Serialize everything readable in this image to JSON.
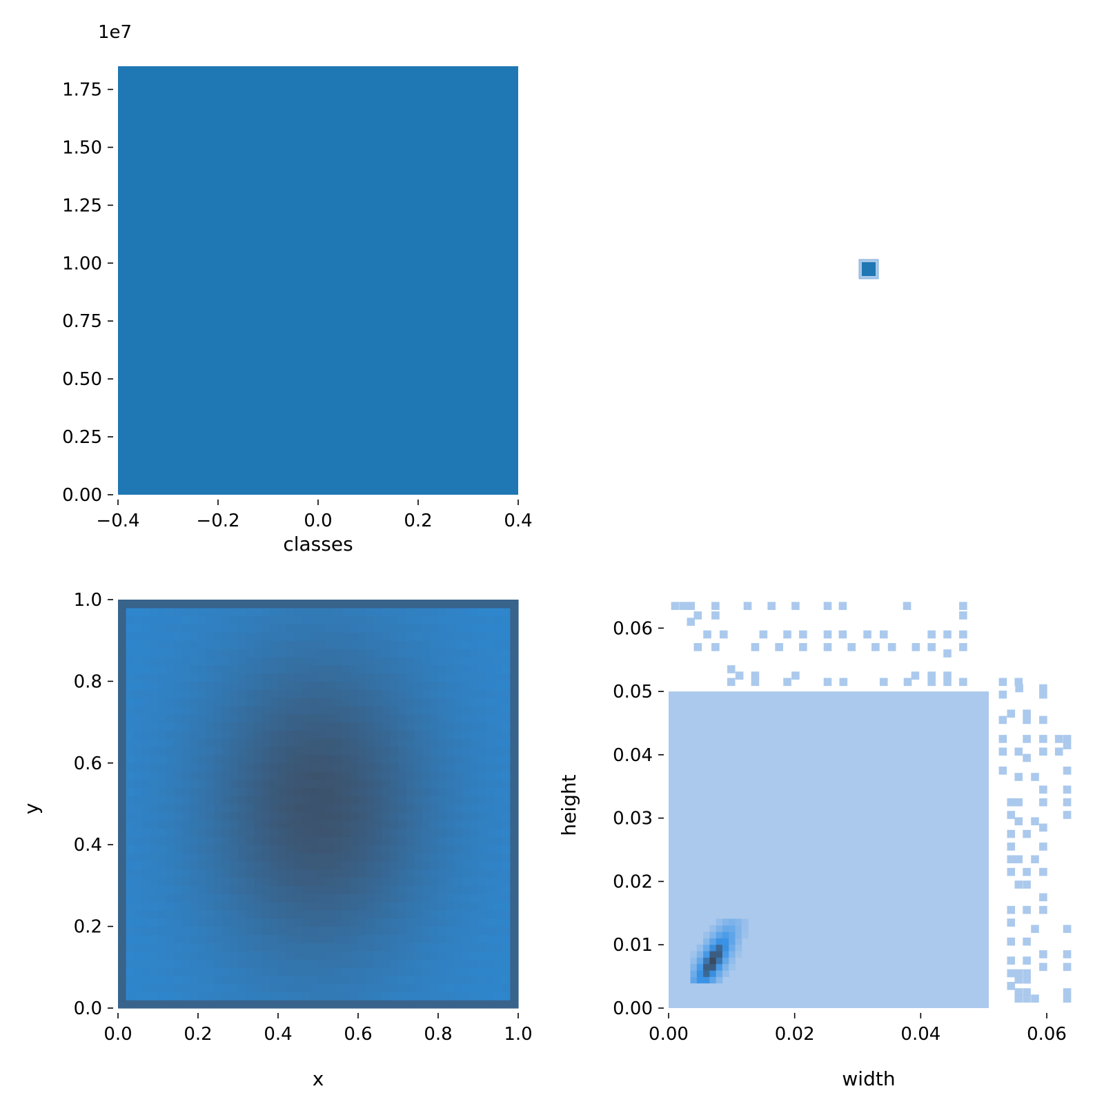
{
  "chart_data": [
    {
      "panel": "top-left",
      "type": "bar",
      "xlabel": "classes",
      "ylabel": "",
      "offset_text": "1e7",
      "x_ticks": [
        -0.4,
        -0.2,
        0.0,
        0.2,
        0.4
      ],
      "x_tick_labels": [
        "−0.4",
        "−0.2",
        "0.0",
        "0.2",
        "0.4"
      ],
      "y_ticks": [
        0,
        0.25,
        0.5,
        0.75,
        1.0,
        1.25,
        1.5,
        1.75
      ],
      "y_tick_labels": [
        "0.00",
        "0.25",
        "0.50",
        "0.75",
        "1.00",
        "1.25",
        "1.50",
        "1.75"
      ],
      "xlim": [
        -0.4,
        0.4
      ],
      "ylim": [
        0,
        1.85
      ],
      "categories": [
        "0"
      ],
      "values": [
        1.85
      ],
      "value_unit_multiplier": 10000000,
      "color": "#1f77b4",
      "grid": false
    },
    {
      "panel": "top-right",
      "type": "scatter",
      "xlabel": "",
      "ylabel": "",
      "points": [
        {
          "x": 0,
          "y": 0
        }
      ],
      "color": "#1f77b4",
      "axes_visible": false
    },
    {
      "panel": "bottom-left",
      "type": "heatmap",
      "xlabel": "x",
      "ylabel": "y",
      "x_ticks": [
        0,
        0.2,
        0.4,
        0.6,
        0.8,
        1.0
      ],
      "x_tick_labels": [
        "0.0",
        "0.2",
        "0.4",
        "0.6",
        "0.8",
        "1.0"
      ],
      "y_ticks": [
        0,
        0.2,
        0.4,
        0.6,
        0.8,
        1.0
      ],
      "y_tick_labels": [
        "0.0",
        "0.2",
        "0.4",
        "0.6",
        "0.8",
        "1.0"
      ],
      "xlim": [
        0,
        1
      ],
      "ylim": [
        0,
        1
      ],
      "bins": 50,
      "density_peak": {
        "x": 0.5,
        "y": 0.5,
        "sx": 0.2,
        "sy": 0.27
      },
      "edge_bins_dense": true,
      "color_low": "#2f86cc",
      "color_high": "#3d5068",
      "grid": false
    },
    {
      "panel": "bottom-right",
      "type": "heatmap",
      "xlabel": "width",
      "ylabel": "height",
      "x_ticks": [
        0,
        0.02,
        0.04,
        0.06
      ],
      "x_tick_labels": [
        "0.00",
        "0.02",
        "0.04",
        "0.06"
      ],
      "y_ticks": [
        0,
        0.01,
        0.02,
        0.03,
        0.04,
        0.05,
        0.06
      ],
      "y_tick_labels": [
        "0.00",
        "0.01",
        "0.02",
        "0.03",
        "0.04",
        "0.05",
        "0.06"
      ],
      "xlim": [
        0,
        0.0635
      ],
      "ylim": [
        0,
        0.0645
      ],
      "bin_size": 0.00127,
      "filled_region": {
        "x_max": 0.0508,
        "y_max": 0.05
      },
      "hotspot": {
        "x": 0.0065,
        "y": 0.007
      },
      "sparse_cells": [
        [
          0.0004,
          0.0635
        ],
        [
          0.0017,
          0.0635
        ],
        [
          0.0029,
          0.0635
        ],
        [
          0.0068,
          0.0635
        ],
        [
          0.0119,
          0.0635
        ],
        [
          0.0157,
          0.0635
        ],
        [
          0.0195,
          0.0635
        ],
        [
          0.0246,
          0.0635
        ],
        [
          0.027,
          0.0635
        ],
        [
          0.0372,
          0.0635
        ],
        [
          0.0461,
          0.0635
        ],
        [
          0.004,
          0.062
        ],
        [
          0.0068,
          0.062
        ],
        [
          0.0461,
          0.062
        ],
        [
          0.0029,
          0.061
        ],
        [
          0.0055,
          0.059
        ],
        [
          0.0081,
          0.059
        ],
        [
          0.0144,
          0.059
        ],
        [
          0.0182,
          0.059
        ],
        [
          0.0207,
          0.059
        ],
        [
          0.0246,
          0.059
        ],
        [
          0.027,
          0.059
        ],
        [
          0.0309,
          0.059
        ],
        [
          0.0335,
          0.059
        ],
        [
          0.0411,
          0.059
        ],
        [
          0.0436,
          0.059
        ],
        [
          0.0461,
          0.059
        ],
        [
          0.004,
          0.057
        ],
        [
          0.0068,
          0.057
        ],
        [
          0.0131,
          0.057
        ],
        [
          0.0169,
          0.057
        ],
        [
          0.0207,
          0.057
        ],
        [
          0.0246,
          0.057
        ],
        [
          0.0284,
          0.057
        ],
        [
          0.0322,
          0.057
        ],
        [
          0.0348,
          0.057
        ],
        [
          0.0386,
          0.057
        ],
        [
          0.0411,
          0.057
        ],
        [
          0.0461,
          0.057
        ],
        [
          0.0436,
          0.056
        ],
        [
          0.0093,
          0.0535
        ],
        [
          0.0106,
          0.0525
        ],
        [
          0.0131,
          0.0525
        ],
        [
          0.0195,
          0.0525
        ],
        [
          0.0385,
          0.0525
        ],
        [
          0.0411,
          0.0525
        ],
        [
          0.0436,
          0.0525
        ],
        [
          0.0093,
          0.0515
        ],
        [
          0.0131,
          0.0515
        ],
        [
          0.0182,
          0.0515
        ],
        [
          0.0246,
          0.0515
        ],
        [
          0.0271,
          0.0515
        ],
        [
          0.0335,
          0.0515
        ],
        [
          0.0373,
          0.0515
        ],
        [
          0.0411,
          0.0515
        ],
        [
          0.0436,
          0.0515
        ],
        [
          0.0461,
          0.0515
        ],
        [
          0.0524,
          0.0515
        ],
        [
          0.0549,
          0.0515
        ],
        [
          0.055,
          0.0505
        ],
        [
          0.0588,
          0.0505
        ],
        [
          0.0588,
          0.0495
        ],
        [
          0.0524,
          0.0495
        ],
        [
          0.0537,
          0.0465
        ],
        [
          0.0562,
          0.0465
        ],
        [
          0.0524,
          0.0455
        ],
        [
          0.0562,
          0.0455
        ],
        [
          0.0588,
          0.0455
        ],
        [
          0.0524,
          0.0425
        ],
        [
          0.0562,
          0.0425
        ],
        [
          0.0588,
          0.0425
        ],
        [
          0.0613,
          0.0425
        ],
        [
          0.0626,
          0.0425
        ],
        [
          0.0626,
          0.0415
        ],
        [
          0.0524,
          0.0405
        ],
        [
          0.0549,
          0.0405
        ],
        [
          0.0588,
          0.0405
        ],
        [
          0.0613,
          0.0405
        ],
        [
          0.0562,
          0.0395
        ],
        [
          0.0626,
          0.0375
        ],
        [
          0.0524,
          0.0375
        ],
        [
          0.0549,
          0.0365
        ],
        [
          0.0575,
          0.0365
        ],
        [
          0.0588,
          0.0345
        ],
        [
          0.0626,
          0.0345
        ],
        [
          0.0537,
          0.0325
        ],
        [
          0.0549,
          0.0325
        ],
        [
          0.0588,
          0.0325
        ],
        [
          0.0626,
          0.0325
        ],
        [
          0.0626,
          0.0305
        ],
        [
          0.0537,
          0.0305
        ],
        [
          0.0549,
          0.0295
        ],
        [
          0.0575,
          0.0295
        ],
        [
          0.0588,
          0.0285
        ],
        [
          0.0537,
          0.0275
        ],
        [
          0.0562,
          0.0275
        ],
        [
          0.0537,
          0.0255
        ],
        [
          0.0588,
          0.0255
        ],
        [
          0.0537,
          0.0235
        ],
        [
          0.0549,
          0.0235
        ],
        [
          0.0575,
          0.0235
        ],
        [
          0.0537,
          0.0215
        ],
        [
          0.0562,
          0.0215
        ],
        [
          0.0588,
          0.0215
        ],
        [
          0.0549,
          0.0195
        ],
        [
          0.0562,
          0.0195
        ],
        [
          0.0588,
          0.0175
        ],
        [
          0.0537,
          0.0155
        ],
        [
          0.0562,
          0.0155
        ],
        [
          0.0588,
          0.0155
        ],
        [
          0.0537,
          0.0135
        ],
        [
          0.0575,
          0.0125
        ],
        [
          0.0626,
          0.0125
        ],
        [
          0.0537,
          0.0105
        ],
        [
          0.0562,
          0.0105
        ],
        [
          0.0588,
          0.0085
        ],
        [
          0.0626,
          0.0085
        ],
        [
          0.0537,
          0.0075
        ],
        [
          0.0562,
          0.0075
        ],
        [
          0.0588,
          0.0065
        ],
        [
          0.0626,
          0.0065
        ],
        [
          0.0537,
          0.0055
        ],
        [
          0.0549,
          0.0055
        ],
        [
          0.0562,
          0.0055
        ],
        [
          0.0549,
          0.0045
        ],
        [
          0.0562,
          0.0045
        ],
        [
          0.0537,
          0.0035
        ],
        [
          0.0549,
          0.0025
        ],
        [
          0.0562,
          0.0025
        ],
        [
          0.0626,
          0.0025
        ],
        [
          0.0549,
          0.0015
        ],
        [
          0.0562,
          0.0015
        ],
        [
          0.0575,
          0.0015
        ],
        [
          0.0626,
          0.0015
        ]
      ],
      "color_background": "#abc9ec",
      "color_mid": "#3a93e6",
      "color_high": "#3b4a5e",
      "grid": false
    }
  ]
}
